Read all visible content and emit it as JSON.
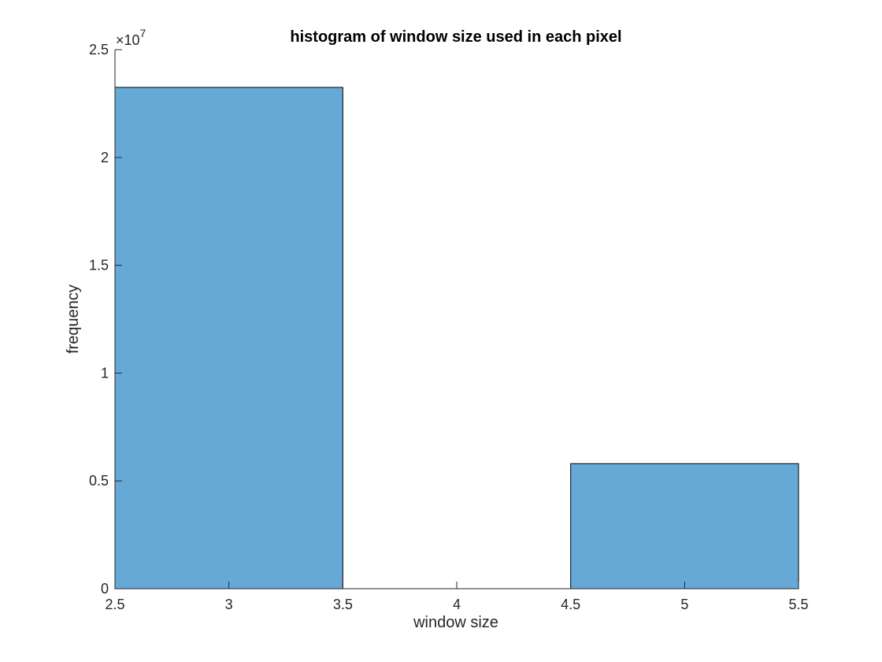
{
  "chart_data": {
    "type": "bar",
    "title": "histogram of window size used in each pixel",
    "xlabel": "window size",
    "ylabel": "frequency",
    "xlim": [
      2.5,
      5.5
    ],
    "ylim": [
      0,
      25000000
    ],
    "x_ticks": [
      2.5,
      3,
      3.5,
      4,
      4.5,
      5,
      5.5
    ],
    "x_tick_labels": [
      "2.5",
      "3",
      "3.5",
      "4",
      "4.5",
      "5",
      "5.5"
    ],
    "y_ticks": [
      0,
      5000000,
      10000000,
      15000000,
      20000000,
      25000000
    ],
    "y_tick_labels": [
      "0",
      "0.5",
      "1",
      "1.5",
      "2",
      "2.5"
    ],
    "y_exponent_label": "×10",
    "y_exponent": "7",
    "bins": [
      {
        "x0": 2.5,
        "x1": 3.5,
        "value": 23250000
      },
      {
        "x0": 3.5,
        "x1": 4.5,
        "value": 0
      },
      {
        "x0": 4.5,
        "x1": 5.5,
        "value": 5800000
      }
    ],
    "grid": false,
    "bar_color": "#66a9d7",
    "edge_color": "#000000"
  }
}
